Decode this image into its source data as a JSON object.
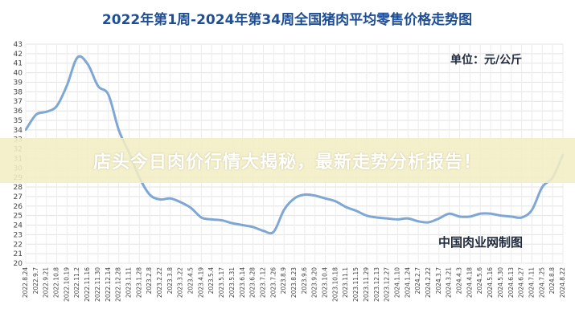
{
  "banner": {
    "text": "店头今日肉价行情大揭秘，最新走势分析报告！"
  },
  "chart_data": {
    "type": "line",
    "title": "2022年第1周-2024年第34周全国猪肉平均零售价格走势图",
    "unit_label": "单位：元/公斤",
    "source": "中国肉业网制图",
    "ylim": [
      20,
      43
    ],
    "yticks": [
      20,
      21,
      22,
      23,
      24,
      25,
      26,
      27,
      28,
      29,
      30,
      31,
      32,
      33,
      34,
      35,
      36,
      37,
      38,
      39,
      40,
      41,
      42,
      43
    ],
    "grid": true,
    "line_color": "#7ea7d6",
    "x": [
      "2022.8.24",
      "2022.9.7",
      "2022.9.21",
      "2022.10.8",
      "2022.10.19",
      "2022.11.2",
      "2022.11.16",
      "2022.11.30",
      "2022.12.14",
      "2022.12.28",
      "2023.1.11",
      "2023.1.28",
      "2023.2.8",
      "2023.2.22",
      "2023.3.8",
      "2023.3.22",
      "2023.4.5",
      "2023.4.19",
      "2023.5.4",
      "2023.5.17",
      "2023.5.31",
      "2023.6.14",
      "2023.6.28",
      "2023.7.12",
      "2023.7.26",
      "2023.8.9",
      "2023.8.23",
      "2023.9.6",
      "2023.9.20",
      "2023.10.4",
      "2023.10.18",
      "2023.11.1",
      "2023.11.15",
      "2023.11.29",
      "2023.12.13",
      "2023.12.27",
      "2024.1.10",
      "2024.1.24",
      "2024.2.7",
      "2024.2.22",
      "2024.3.7",
      "2024.3.21",
      "2024.4.3",
      "2024.4.18",
      "2024.5.6",
      "2024.5.16",
      "2024.5.30",
      "2024.6.13",
      "2024.6.27",
      "2024.7.11",
      "2024.7.25",
      "2024.8.8",
      "2024.8.22"
    ],
    "values": [
      34.0,
      35.6,
      35.9,
      36.5,
      38.7,
      41.6,
      40.9,
      38.6,
      37.7,
      34.0,
      31.6,
      29.0,
      27.2,
      26.7,
      26.8,
      26.4,
      25.8,
      24.8,
      24.6,
      24.5,
      24.2,
      24.0,
      23.8,
      23.4,
      23.3,
      25.6,
      26.8,
      27.2,
      27.1,
      26.8,
      26.5,
      25.9,
      25.5,
      25.0,
      24.8,
      24.7,
      24.6,
      24.7,
      24.4,
      24.3,
      24.7,
      25.2,
      24.9,
      24.9,
      25.2,
      25.2,
      25.0,
      24.9,
      24.8,
      25.6,
      28.0,
      29.0,
      31.4
    ]
  }
}
